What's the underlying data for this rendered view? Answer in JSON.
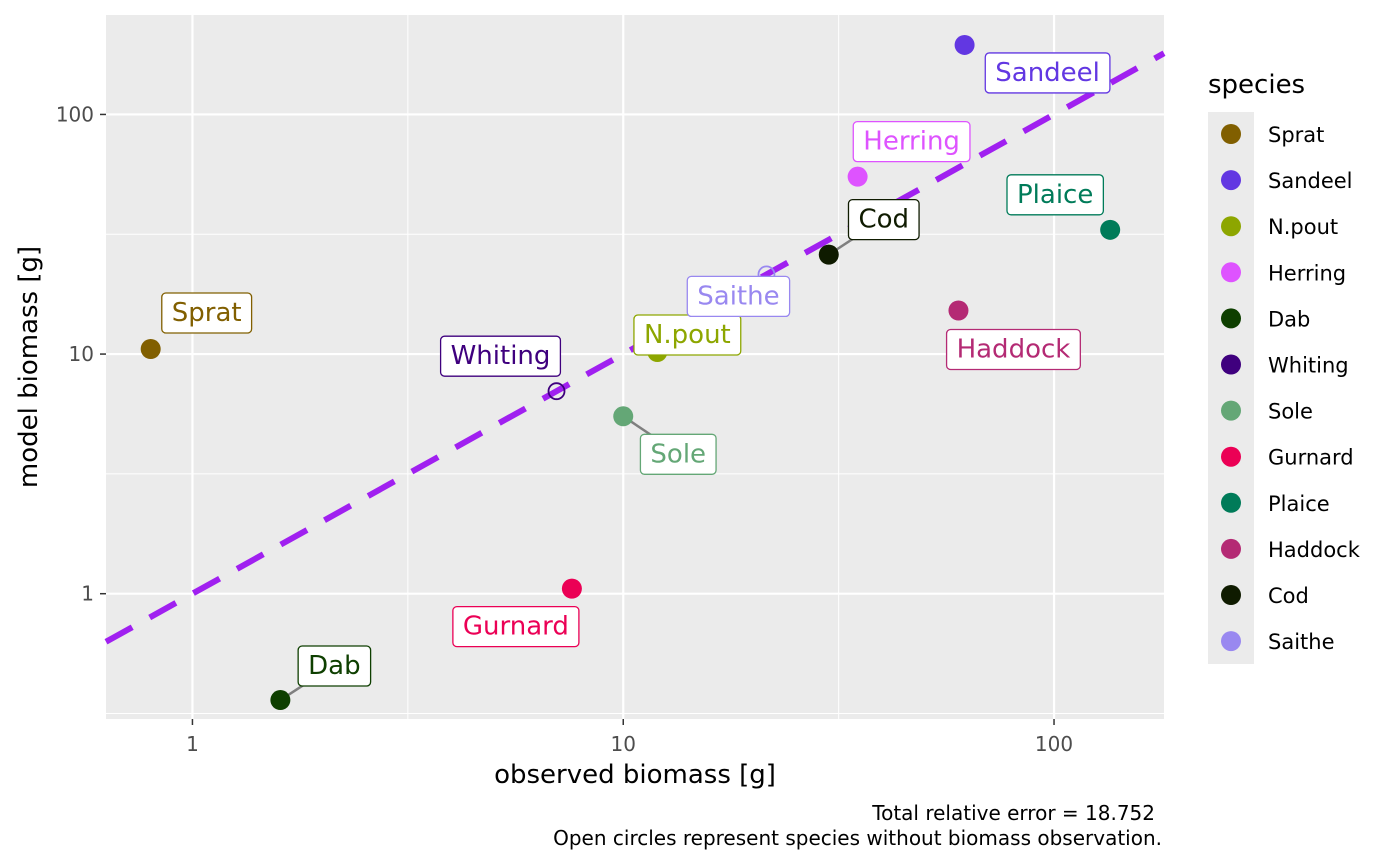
{
  "chart_data": {
    "type": "scatter",
    "xlabel": "observed biomass [g]",
    "ylabel": "model biomass [g]",
    "xscale": "log",
    "yscale": "log",
    "xlim": [
      0.63,
      180
    ],
    "ylim": [
      0.3,
      260
    ],
    "x_ticks": [
      {
        "value": 1,
        "label": "1"
      },
      {
        "value": 10,
        "label": "10"
      },
      {
        "value": 100,
        "label": "100"
      }
    ],
    "y_ticks": [
      {
        "value": 1,
        "label": "1"
      },
      {
        "value": 10,
        "label": "10"
      },
      {
        "value": 100,
        "label": "100"
      }
    ],
    "grid": true,
    "reference_line": {
      "type": "identity",
      "style": "dashed",
      "color": "#a020f0"
    },
    "legend": {
      "title": "species",
      "position": "right"
    },
    "caption": [
      "Total relative error = 18.752",
      "Open circles represent species without biomass observation."
    ],
    "points": [
      {
        "species": "Sprat",
        "x": 0.8,
        "y": 10.5,
        "color": "#815f00",
        "open": false
      },
      {
        "species": "Sandeel",
        "x": 62,
        "y": 195,
        "color": "#6237e2",
        "open": false
      },
      {
        "species": "N.pout",
        "x": 12,
        "y": 10.2,
        "color": "#8da600",
        "open": false
      },
      {
        "species": "Herring",
        "x": 35,
        "y": 55,
        "color": "#de53ff",
        "open": false
      },
      {
        "species": "Dab",
        "x": 1.6,
        "y": 0.36,
        "color": "#0e3f00",
        "open": false
      },
      {
        "species": "Whiting",
        "x": 7,
        "y": 7,
        "color": "#3f007e",
        "open": true
      },
      {
        "species": "Sole",
        "x": 10,
        "y": 5.5,
        "color": "#64a776",
        "open": false
      },
      {
        "species": "Gurnard",
        "x": 7.6,
        "y": 1.05,
        "color": "#eb0055",
        "open": false
      },
      {
        "species": "Plaice",
        "x": 135,
        "y": 33,
        "color": "#007b59",
        "open": false
      },
      {
        "species": "Haddock",
        "x": 60,
        "y": 15.2,
        "color": "#b42a74",
        "open": false
      },
      {
        "species": "Cod",
        "x": 30,
        "y": 26,
        "color": "#0f1b00",
        "open": false
      },
      {
        "species": "Saithe",
        "x": 21.5,
        "y": 21.5,
        "color": "#9988f0",
        "open": true
      }
    ]
  }
}
